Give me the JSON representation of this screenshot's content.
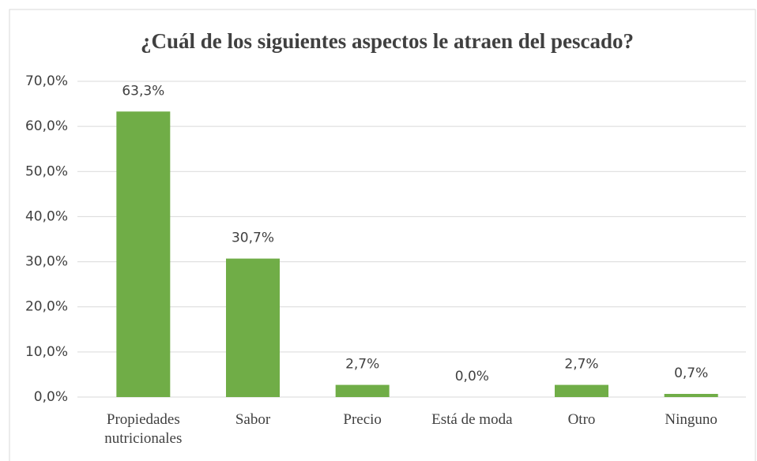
{
  "chart_data": {
    "type": "bar",
    "title": "¿Cuál de los siguientes aspectos le atraen del pescado?",
    "categories": [
      "Propiedades nutricionales",
      "Sabor",
      "Precio",
      "Está de moda",
      "Otro",
      "Ninguno"
    ],
    "values": [
      63.3,
      30.7,
      2.7,
      0.0,
      2.7,
      0.7
    ],
    "value_labels": [
      "63,3%",
      "30,7%",
      "2,7%",
      "0,0%",
      "2,7%",
      "0,7%"
    ],
    "color": "#70ad47",
    "ylim": [
      0,
      70
    ],
    "yticks": [
      {
        "value": 0,
        "label": "0,0%"
      },
      {
        "value": 10,
        "label": "10,0%"
      },
      {
        "value": 20,
        "label": "20,0%"
      },
      {
        "value": 30,
        "label": "30,0%"
      },
      {
        "value": 40,
        "label": "40,0%"
      },
      {
        "value": 50,
        "label": "50,0%"
      },
      {
        "value": 60,
        "label": "60,0%"
      },
      {
        "value": 70,
        "label": "70,0%"
      }
    ],
    "grid": true
  }
}
